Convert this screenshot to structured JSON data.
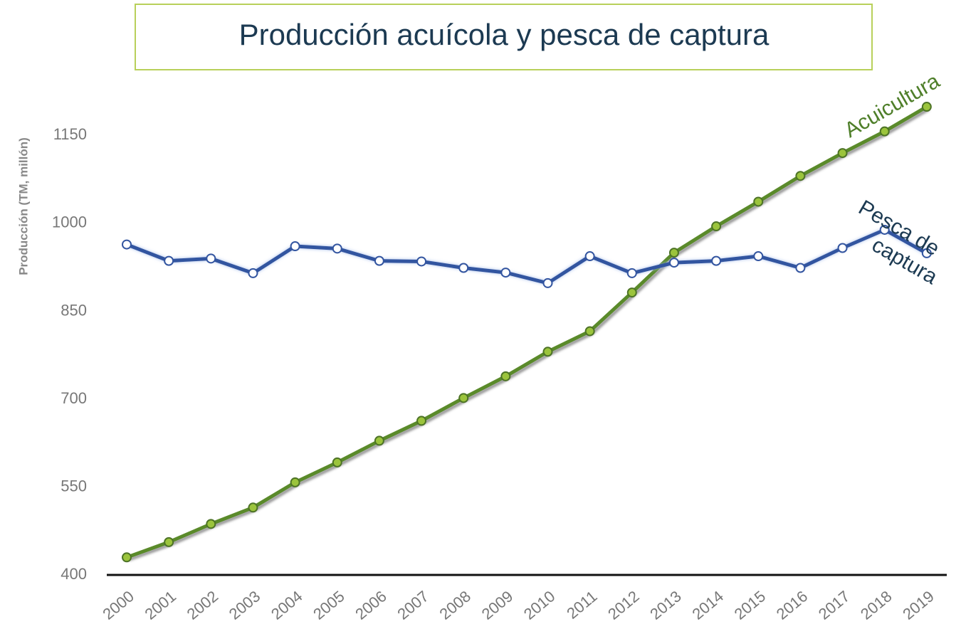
{
  "chart_data": {
    "type": "line",
    "title": "Producción acuícola y pesca de captura",
    "y_label": "Producción (TM, millón)",
    "categories": [
      "2000",
      "2001",
      "2002",
      "2003",
      "2004",
      "2005",
      "2006",
      "2007",
      "2008",
      "2009",
      "2010",
      "2011",
      "2012",
      "2013",
      "2014",
      "2015",
      "2016",
      "2017",
      "2018",
      "2019"
    ],
    "series": [
      {
        "name": "Acuicultura",
        "color": "#5a8a2a",
        "marker_color": "#9bc43c",
        "values": [
          430,
          456,
          487,
          515,
          558,
          592,
          629,
          663,
          702,
          739,
          781,
          816,
          882,
          950,
          995,
          1037,
          1081,
          1120,
          1157,
          1199
        ]
      },
      {
        "name": "Pesca de captura",
        "color": "#3355a0",
        "marker_color": "#ffffff",
        "values": [
          964,
          936,
          940,
          915,
          961,
          957,
          936,
          935,
          924,
          916,
          898,
          944,
          915,
          933,
          936,
          944,
          924,
          958,
          989,
          949
        ]
      }
    ],
    "ylim": [
      400,
      1210
    ],
    "yticks": [
      400,
      550,
      700,
      850,
      1000,
      1150
    ],
    "grid": false
  }
}
